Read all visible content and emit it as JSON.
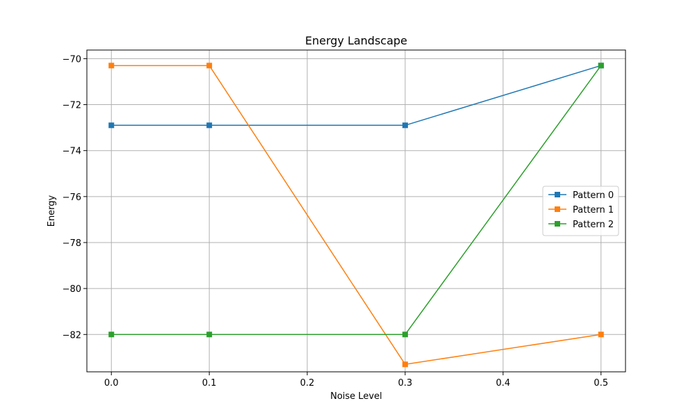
{
  "chart_data": {
    "type": "line",
    "title": "Energy Landscape",
    "xlabel": "Noise Level",
    "ylabel": "Energy",
    "x": [
      0.0,
      0.1,
      0.3,
      0.5
    ],
    "xlim": [
      -0.025,
      0.525
    ],
    "ylim": [
      -83.625,
      -69.625
    ],
    "xticks": [
      0.0,
      0.1,
      0.2,
      0.3,
      0.4,
      0.5
    ],
    "xtick_labels": [
      "0.0",
      "0.1",
      "0.2",
      "0.3",
      "0.4",
      "0.5"
    ],
    "yticks": [
      -70,
      -72,
      -74,
      -76,
      -78,
      -80,
      -82
    ],
    "ytick_labels": [
      "−70",
      "−72",
      "−74",
      "−76",
      "−78",
      "−80",
      "−82"
    ],
    "grid": true,
    "legend_position": "center-right",
    "marker": "square",
    "series": [
      {
        "name": "Pattern 0",
        "color": "#1f77b4",
        "values": [
          -72.9,
          -72.9,
          -72.9,
          -70.3
        ]
      },
      {
        "name": "Pattern 1",
        "color": "#ff7f0e",
        "values": [
          -70.3,
          -70.3,
          -83.3,
          -82.0
        ]
      },
      {
        "name": "Pattern 2",
        "color": "#2ca02c",
        "values": [
          -82.0,
          -82.0,
          -82.0,
          -70.3
        ]
      }
    ]
  }
}
